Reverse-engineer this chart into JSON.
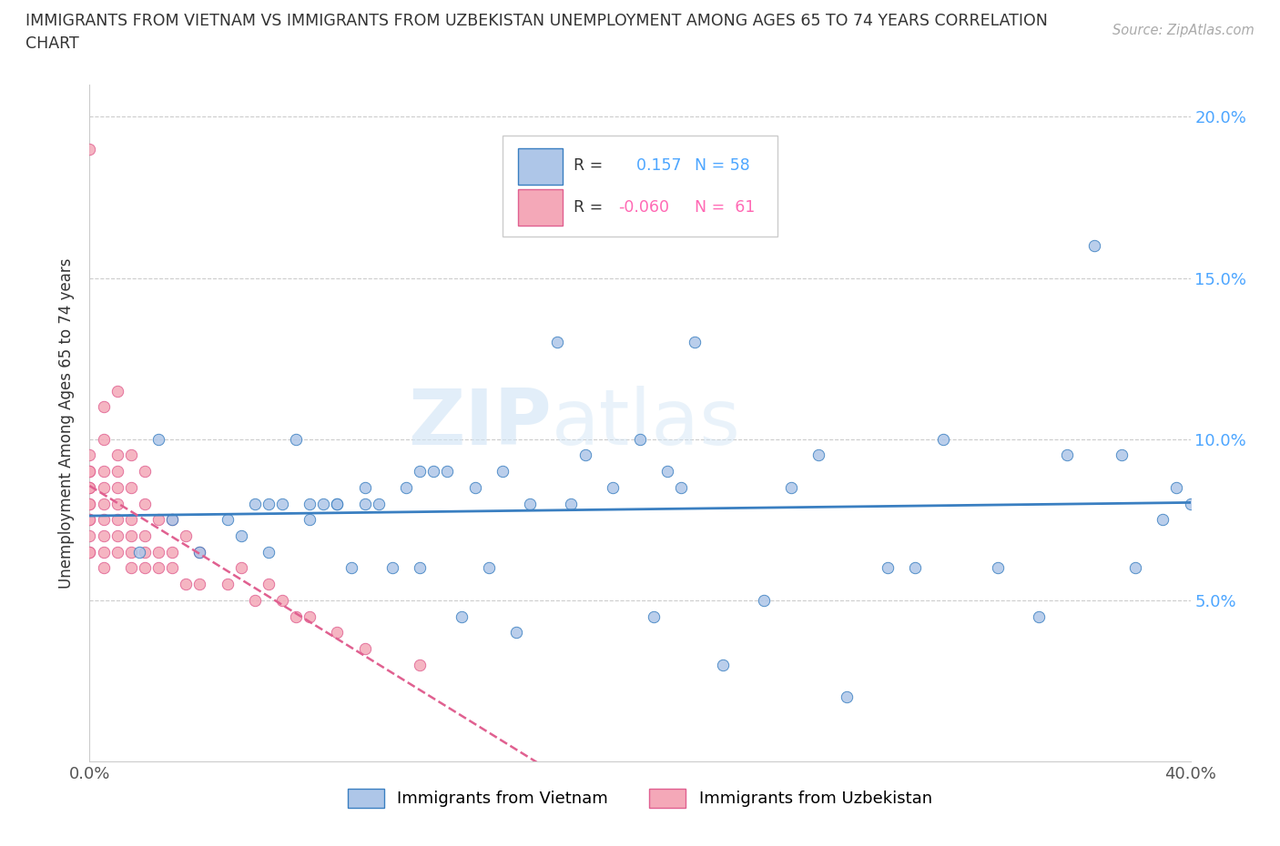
{
  "title_line1": "IMMIGRANTS FROM VIETNAM VS IMMIGRANTS FROM UZBEKISTAN UNEMPLOYMENT AMONG AGES 65 TO 74 YEARS CORRELATION",
  "title_line2": "CHART",
  "source": "Source: ZipAtlas.com",
  "ylabel": "Unemployment Among Ages 65 to 74 years",
  "xlabel_vietnam": "Immigrants from Vietnam",
  "xlabel_uzbekistan": "Immigrants from Uzbekistan",
  "xlim": [
    0.0,
    0.4
  ],
  "ylim": [
    0.0,
    0.21
  ],
  "R_vietnam": 0.157,
  "N_vietnam": 58,
  "R_uzbekistan": -0.06,
  "N_uzbekistan": 61,
  "color_vietnam": "#aec6e8",
  "color_uzbekistan": "#f4a8b8",
  "line_color_vietnam": "#3a7fc1",
  "line_color_uzbekistan": "#e06090",
  "vietnam_x": [
    0.018,
    0.025,
    0.03,
    0.04,
    0.05,
    0.055,
    0.06,
    0.065,
    0.065,
    0.07,
    0.075,
    0.08,
    0.08,
    0.085,
    0.09,
    0.09,
    0.095,
    0.1,
    0.1,
    0.105,
    0.11,
    0.115,
    0.12,
    0.12,
    0.125,
    0.13,
    0.135,
    0.14,
    0.145,
    0.15,
    0.155,
    0.16,
    0.17,
    0.175,
    0.18,
    0.19,
    0.2,
    0.205,
    0.21,
    0.215,
    0.22,
    0.23,
    0.245,
    0.255,
    0.265,
    0.275,
    0.29,
    0.3,
    0.31,
    0.33,
    0.345,
    0.355,
    0.365,
    0.375,
    0.38,
    0.39,
    0.395,
    0.4
  ],
  "vietnam_y": [
    0.065,
    0.1,
    0.075,
    0.065,
    0.075,
    0.07,
    0.08,
    0.08,
    0.065,
    0.08,
    0.1,
    0.08,
    0.075,
    0.08,
    0.08,
    0.08,
    0.06,
    0.085,
    0.08,
    0.08,
    0.06,
    0.085,
    0.09,
    0.06,
    0.09,
    0.09,
    0.045,
    0.085,
    0.06,
    0.09,
    0.04,
    0.08,
    0.13,
    0.08,
    0.095,
    0.085,
    0.1,
    0.045,
    0.09,
    0.085,
    0.13,
    0.03,
    0.05,
    0.085,
    0.095,
    0.02,
    0.06,
    0.06,
    0.1,
    0.06,
    0.045,
    0.095,
    0.16,
    0.095,
    0.06,
    0.075,
    0.085,
    0.08
  ],
  "uzbekistan_x": [
    0.0,
    0.0,
    0.0,
    0.0,
    0.0,
    0.0,
    0.0,
    0.0,
    0.0,
    0.0,
    0.0,
    0.0,
    0.0,
    0.005,
    0.005,
    0.005,
    0.005,
    0.005,
    0.005,
    0.005,
    0.005,
    0.005,
    0.01,
    0.01,
    0.01,
    0.01,
    0.01,
    0.01,
    0.01,
    0.01,
    0.015,
    0.015,
    0.015,
    0.015,
    0.015,
    0.015,
    0.02,
    0.02,
    0.02,
    0.02,
    0.02,
    0.025,
    0.025,
    0.025,
    0.03,
    0.03,
    0.03,
    0.035,
    0.035,
    0.04,
    0.04,
    0.05,
    0.055,
    0.06,
    0.065,
    0.07,
    0.075,
    0.08,
    0.09,
    0.1,
    0.12
  ],
  "uzbekistan_y": [
    0.065,
    0.065,
    0.07,
    0.075,
    0.075,
    0.08,
    0.08,
    0.085,
    0.085,
    0.09,
    0.09,
    0.095,
    0.19,
    0.06,
    0.065,
    0.07,
    0.075,
    0.08,
    0.085,
    0.09,
    0.1,
    0.11,
    0.065,
    0.07,
    0.075,
    0.08,
    0.085,
    0.09,
    0.095,
    0.115,
    0.06,
    0.065,
    0.07,
    0.075,
    0.085,
    0.095,
    0.06,
    0.065,
    0.07,
    0.08,
    0.09,
    0.06,
    0.065,
    0.075,
    0.06,
    0.065,
    0.075,
    0.055,
    0.07,
    0.055,
    0.065,
    0.055,
    0.06,
    0.05,
    0.055,
    0.05,
    0.045,
    0.045,
    0.04,
    0.035,
    0.03
  ]
}
